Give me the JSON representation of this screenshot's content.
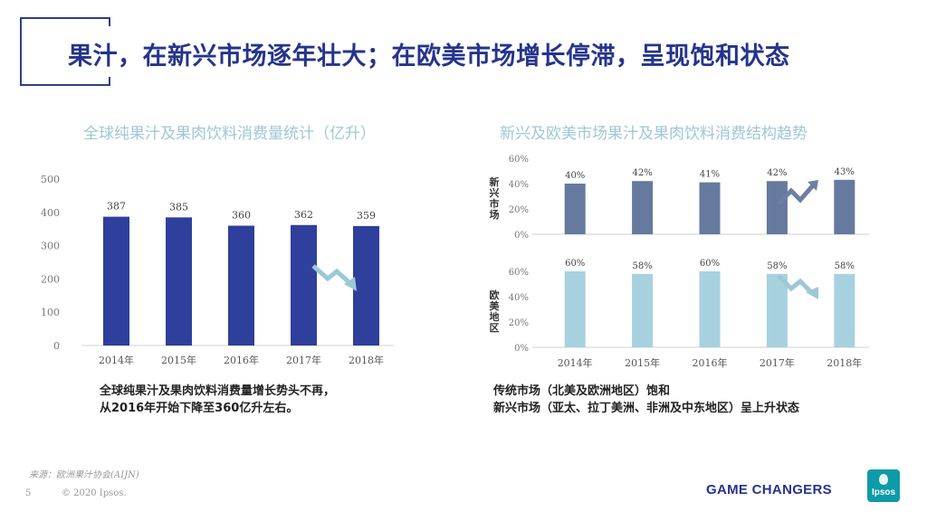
{
  "title": "果汁，在新兴市场逐年壮大；在欧美市场增长停滞，呈现饱和状态",
  "left": {
    "subtitle": "全球纯果汁及果肉饮料消费量统计（亿升）",
    "note_lines": [
      "全球纯果汁及果肉饮料消费量增长势头不再，",
      "从2016年开始下降至360亿升左右。"
    ]
  },
  "right": {
    "subtitle": "新兴及欧美市场果汁及果肉饮料消费结构趋势",
    "panel_labels": [
      "新兴市场",
      "欧美地区"
    ],
    "note_lines": [
      "传统市场（北美及欧洲地区）饱和",
      "新兴市场（亚太、拉丁美洲、非洲及中东地区）呈上升状态"
    ]
  },
  "chart_data": [
    {
      "type": "bar",
      "title": "全球纯果汁及果肉饮料消费量统计（亿升）",
      "categories": [
        "2014年",
        "2015年",
        "2016年",
        "2017年",
        "2018年"
      ],
      "values": [
        387,
        385,
        360,
        362,
        359
      ],
      "yticks": [
        "0",
        "100",
        "200",
        "300",
        "400",
        "500"
      ],
      "ylim": [
        0,
        500
      ],
      "color": "#2e3f9c",
      "trend": "down"
    },
    {
      "type": "bar",
      "title": "新兴及欧美市场果汁及果肉饮料消费结构趋势",
      "categories": [
        "2014年",
        "2015年",
        "2016年",
        "2017年",
        "2018年"
      ],
      "series": [
        {
          "name": "新兴市场",
          "values": [
            40,
            42,
            41,
            42,
            43
          ],
          "labels": [
            "40%",
            "42%",
            "41%",
            "42%",
            "43%"
          ],
          "color": "#66799e",
          "yticks": [
            "0%",
            "20%",
            "40%",
            "60%"
          ],
          "trend": "up"
        },
        {
          "name": "欧美地区",
          "values": [
            60,
            58,
            60,
            58,
            58
          ],
          "labels": [
            "60%",
            "58%",
            "60%",
            "58%",
            "58%"
          ],
          "color": "#a8d1e0",
          "yticks": [
            "0%",
            "20%",
            "40%",
            "60%"
          ],
          "trend": "down"
        }
      ],
      "ylim": [
        0,
        60
      ]
    }
  ],
  "footer": {
    "source": "来源：欧洲果汁协会(AIJN)",
    "page": "5",
    "copyright": "© 2020 Ipsos.",
    "tagline": "GAME CHANGERS",
    "logo": "Ipsos"
  },
  "colors": {
    "brand": "#25348c",
    "subtitle": "#9fc6d6",
    "arrow": "#9cc8d8",
    "arrow_up": "#6f7fa2"
  }
}
